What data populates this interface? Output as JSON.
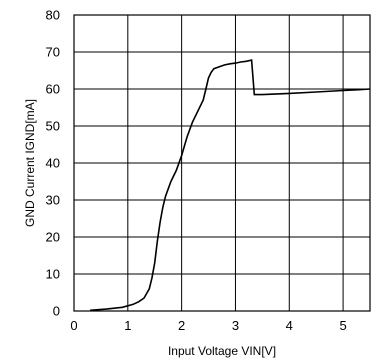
{
  "chart_data": {
    "type": "line",
    "title": "",
    "xlabel": "Input Voltage VIN[V]",
    "ylabel": "GND Current IGND[mA]",
    "xlim": [
      0,
      5.5
    ],
    "ylim": [
      0,
      80
    ],
    "x_ticks": [
      0,
      1,
      2,
      3,
      4,
      5
    ],
    "y_ticks": [
      0,
      10,
      20,
      30,
      40,
      50,
      60,
      70,
      80
    ],
    "grid": true,
    "legend": "none",
    "colors": {
      "line": "#000000",
      "grid": "#000000",
      "background": "#ffffff"
    },
    "series": [
      {
        "x": [
          0.3,
          0.6,
          0.9,
          1.1,
          1.2,
          1.3,
          1.4,
          1.45,
          1.5,
          1.55,
          1.6,
          1.65,
          1.7,
          1.8,
          1.9,
          2.0,
          2.1,
          2.2,
          2.3,
          2.4,
          2.45,
          2.5,
          2.55,
          2.6,
          2.7,
          2.8,
          2.9,
          3.0,
          3.1,
          3.2,
          3.3,
          3.35,
          3.5,
          4.0,
          4.5,
          5.0,
          5.3,
          5.5
        ],
        "y": [
          0.2,
          0.5,
          1.0,
          1.8,
          2.5,
          3.5,
          6.0,
          9.0,
          13.0,
          19.0,
          24.0,
          28.0,
          31.0,
          35.0,
          38.0,
          42.0,
          47.0,
          51.0,
          54.0,
          57.0,
          60.0,
          63.0,
          64.5,
          65.5,
          66.0,
          66.5,
          66.8,
          67.0,
          67.3,
          67.5,
          67.8,
          58.5,
          58.5,
          58.8,
          59.2,
          59.6,
          59.8,
          60.0
        ]
      }
    ]
  }
}
